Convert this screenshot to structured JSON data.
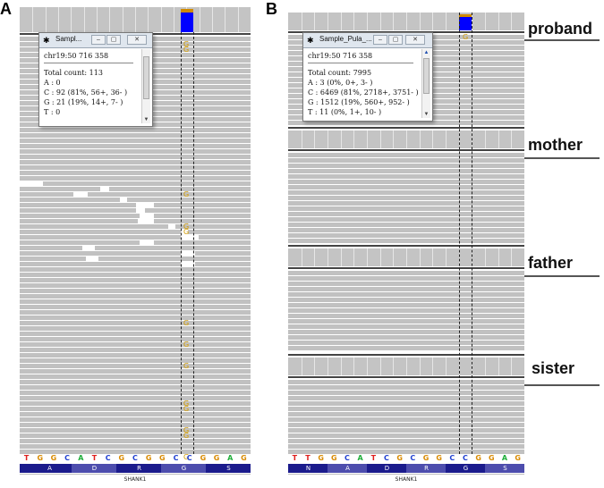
{
  "panel_a": {
    "letter": "A",
    "popup": {
      "title": "Sampl...",
      "position": "chr19:50 716 358",
      "total": "Total count: 113",
      "lines": [
        "A : 0",
        "C : 92 (81%, 56+, 36- )",
        "G : 21 (19%, 14+, 7- )",
        "T : 0"
      ]
    },
    "mismatch_base": "G",
    "sequence": [
      "T",
      "G",
      "G",
      "C",
      "A",
      "T",
      "C",
      "G",
      "C",
      "G",
      "G",
      "C",
      "C",
      "G",
      "G",
      "A",
      "G"
    ],
    "amino_acids": [
      "A",
      "D",
      "R",
      "G",
      "S"
    ],
    "gene": "SHANK1"
  },
  "panel_b": {
    "letter": "B",
    "popup": {
      "title": "Sample_Pula_...",
      "position": "chr19:50 716 358",
      "total": "Total count: 7995",
      "lines": [
        "A : 3 (0%, 0+, 3- )",
        "C : 6469 (81%, 2718+, 3751- )",
        "G : 1512 (19%, 560+, 952- )",
        "T : 11 (0%, 1+, 10- )"
      ]
    },
    "mismatch_base": "G",
    "tracks": [
      "proband",
      "mother",
      "father",
      "sister"
    ],
    "sequence": [
      "T",
      "T",
      "G",
      "G",
      "C",
      "A",
      "T",
      "C",
      "G",
      "C",
      "G",
      "G",
      "C",
      "C",
      "G",
      "G",
      "A",
      "G"
    ],
    "amino_acids": [
      "N",
      "A",
      "D",
      "R",
      "G",
      "S"
    ],
    "gene": "SHANK1"
  },
  "colors": {
    "A": "#1fae3a",
    "C": "#1f3fd1",
    "G": "#d98a00",
    "T": "#e0201e",
    "reads": "#c1c1c1",
    "coverage": "#c4c4c4",
    "variant_C": "#0000ff",
    "variant_G": "#d08a00",
    "aa_dark": "#1b1b8c",
    "aa_light": "#4d4dad"
  }
}
